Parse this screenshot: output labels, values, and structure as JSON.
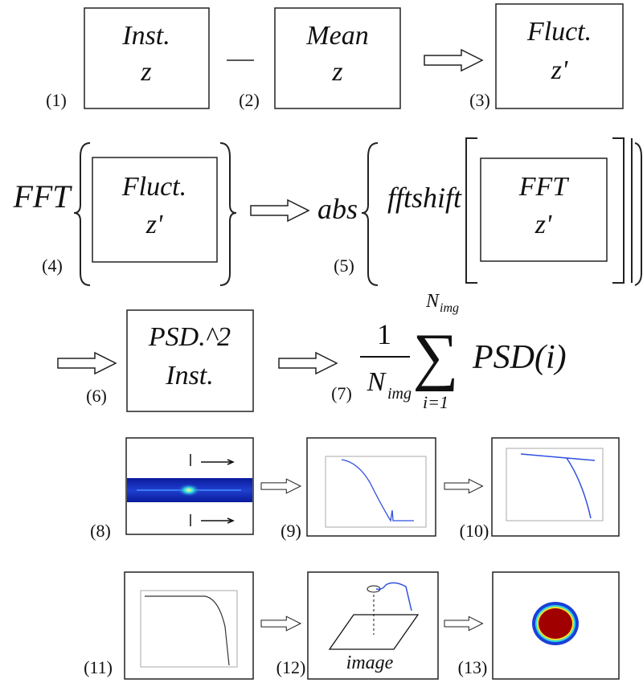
{
  "labels": [
    "(1)",
    "(2)",
    "(3)",
    "(4)",
    "(5)",
    "(6)",
    "(7)",
    "(8)",
    "(9)",
    "(10)",
    "(11)",
    "(12)",
    "(13)"
  ],
  "boxes": [
    [
      "Inst.",
      "z"
    ],
    [
      "Mean",
      "z"
    ],
    [
      "Fluct.",
      "z'"
    ],
    [
      "Fluct.",
      "z'"
    ],
    [
      "FFT",
      "z'"
    ],
    [
      "PSD.^2",
      "Inst."
    ]
  ],
  "operators": {
    "fft": "FFT",
    "abs": "abs",
    "fftshift": "fftshift"
  },
  "formula": {
    "numerator": "1",
    "denominator": "N",
    "denominator_sub": "img",
    "sum": "∑",
    "upper": "N",
    "upper_sub": "img",
    "lower": "i=1",
    "term": "PSD(i)"
  },
  "caption": "image"
}
